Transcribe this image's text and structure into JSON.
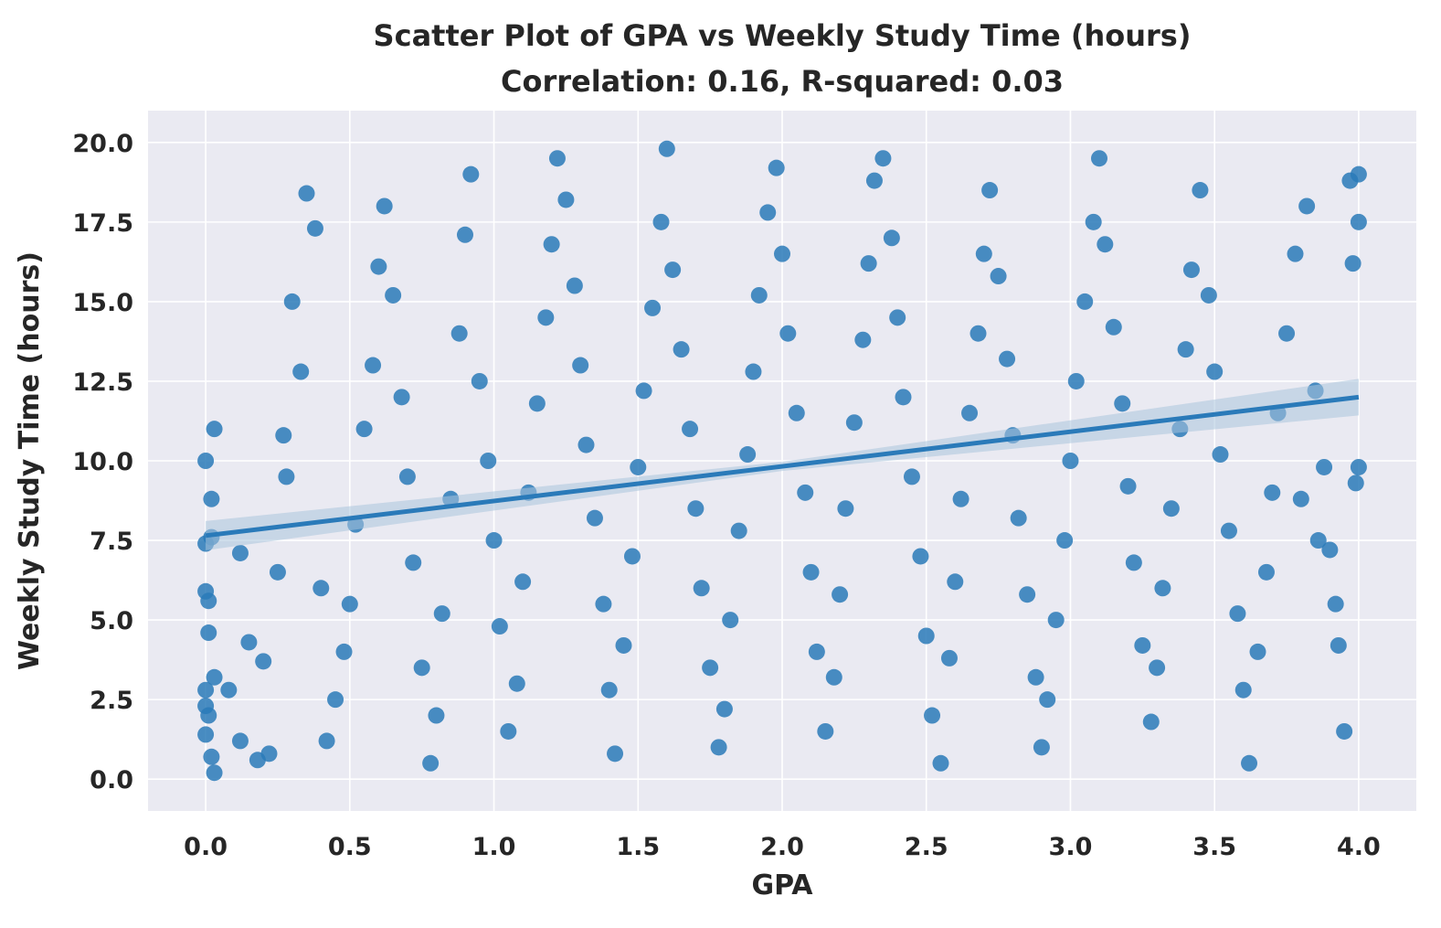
{
  "chart_data": {
    "type": "scatter",
    "title": "Scatter Plot of GPA vs Weekly Study Time (hours)",
    "subtitle": "Correlation: 0.16, R-squared: 0.03",
    "xlabel": "GPA",
    "ylabel": "Weekly Study Time (hours)",
    "xlim": [
      -0.2,
      4.2
    ],
    "ylim": [
      -1.0,
      21.0
    ],
    "x_ticks": [
      0.0,
      0.5,
      1.0,
      1.5,
      2.0,
      2.5,
      3.0,
      3.5,
      4.0
    ],
    "x_tick_labels": [
      "0.0",
      "0.5",
      "1.0",
      "1.5",
      "2.0",
      "2.5",
      "3.0",
      "3.5",
      "4.0"
    ],
    "y_ticks": [
      0.0,
      2.5,
      5.0,
      7.5,
      10.0,
      12.5,
      15.0,
      17.5,
      20.0
    ],
    "y_tick_labels": [
      "0.0",
      "2.5",
      "5.0",
      "7.5",
      "10.0",
      "12.5",
      "15.0",
      "17.5",
      "20.0"
    ],
    "grid": true,
    "point_color": "#2a7ab9",
    "regression_line": {
      "start": [
        0.0,
        7.65
      ],
      "end": [
        4.0,
        12.0
      ],
      "color": "#2a7ab9",
      "ci_color": "#a9c4dd"
    },
    "series": [
      {
        "points": [
          [
            0.0,
            10.0
          ],
          [
            0.03,
            11.0
          ],
          [
            0.02,
            8.8
          ],
          [
            0.0,
            5.9
          ],
          [
            0.01,
            4.6
          ],
          [
            0.0,
            2.8
          ],
          [
            0.01,
            2.0
          ],
          [
            0.0,
            1.4
          ],
          [
            0.02,
            0.7
          ],
          [
            0.03,
            0.2
          ],
          [
            0.01,
            5.6
          ],
          [
            0.0,
            7.4
          ],
          [
            0.02,
            7.6
          ],
          [
            0.03,
            3.2
          ],
          [
            0.0,
            2.3
          ],
          [
            0.08,
            2.8
          ],
          [
            0.12,
            7.1
          ],
          [
            0.15,
            4.3
          ],
          [
            0.12,
            1.2
          ],
          [
            0.18,
            0.6
          ],
          [
            0.22,
            0.8
          ],
          [
            0.2,
            3.7
          ],
          [
            0.25,
            6.5
          ],
          [
            0.27,
            10.8
          ],
          [
            0.3,
            15.0
          ],
          [
            0.28,
            9.5
          ],
          [
            0.33,
            12.8
          ],
          [
            0.35,
            18.4
          ],
          [
            0.38,
            17.3
          ],
          [
            0.4,
            6.0
          ],
          [
            0.42,
            1.2
          ],
          [
            0.45,
            2.5
          ],
          [
            0.48,
            4.0
          ],
          [
            0.5,
            5.5
          ],
          [
            0.52,
            8.0
          ],
          [
            0.55,
            11.0
          ],
          [
            0.58,
            13.0
          ],
          [
            0.6,
            16.1
          ],
          [
            0.62,
            18.0
          ],
          [
            0.65,
            15.2
          ],
          [
            0.68,
            12.0
          ],
          [
            0.7,
            9.5
          ],
          [
            0.72,
            6.8
          ],
          [
            0.75,
            3.5
          ],
          [
            0.78,
            0.5
          ],
          [
            0.8,
            2.0
          ],
          [
            0.82,
            5.2
          ],
          [
            0.85,
            8.8
          ],
          [
            0.88,
            14.0
          ],
          [
            0.9,
            17.1
          ],
          [
            0.92,
            19.0
          ],
          [
            0.95,
            12.5
          ],
          [
            0.98,
            10.0
          ],
          [
            1.0,
            7.5
          ],
          [
            1.02,
            4.8
          ],
          [
            1.05,
            1.5
          ],
          [
            1.08,
            3.0
          ],
          [
            1.1,
            6.2
          ],
          [
            1.12,
            9.0
          ],
          [
            1.15,
            11.8
          ],
          [
            1.18,
            14.5
          ],
          [
            1.2,
            16.8
          ],
          [
            1.22,
            19.5
          ],
          [
            1.25,
            18.2
          ],
          [
            1.28,
            15.5
          ],
          [
            1.3,
            13.0
          ],
          [
            1.32,
            10.5
          ],
          [
            1.35,
            8.2
          ],
          [
            1.38,
            5.5
          ],
          [
            1.4,
            2.8
          ],
          [
            1.42,
            0.8
          ],
          [
            1.45,
            4.2
          ],
          [
            1.48,
            7.0
          ],
          [
            1.5,
            9.8
          ],
          [
            1.52,
            12.2
          ],
          [
            1.55,
            14.8
          ],
          [
            1.58,
            17.5
          ],
          [
            1.6,
            19.8
          ],
          [
            1.62,
            16.0
          ],
          [
            1.65,
            13.5
          ],
          [
            1.68,
            11.0
          ],
          [
            1.7,
            8.5
          ],
          [
            1.72,
            6.0
          ],
          [
            1.75,
            3.5
          ],
          [
            1.78,
            1.0
          ],
          [
            1.8,
            2.2
          ],
          [
            1.82,
            5.0
          ],
          [
            1.85,
            7.8
          ],
          [
            1.88,
            10.2
          ],
          [
            1.9,
            12.8
          ],
          [
            1.92,
            15.2
          ],
          [
            1.95,
            17.8
          ],
          [
            1.98,
            19.2
          ],
          [
            2.0,
            16.5
          ],
          [
            2.02,
            14.0
          ],
          [
            2.05,
            11.5
          ],
          [
            2.08,
            9.0
          ],
          [
            2.1,
            6.5
          ],
          [
            2.12,
            4.0
          ],
          [
            2.15,
            1.5
          ],
          [
            2.18,
            3.2
          ],
          [
            2.2,
            5.8
          ],
          [
            2.22,
            8.5
          ],
          [
            2.25,
            11.2
          ],
          [
            2.28,
            13.8
          ],
          [
            2.3,
            16.2
          ],
          [
            2.32,
            18.8
          ],
          [
            2.35,
            19.5
          ],
          [
            2.38,
            17.0
          ],
          [
            2.4,
            14.5
          ],
          [
            2.42,
            12.0
          ],
          [
            2.45,
            9.5
          ],
          [
            2.48,
            7.0
          ],
          [
            2.5,
            4.5
          ],
          [
            2.52,
            2.0
          ],
          [
            2.55,
            0.5
          ],
          [
            2.58,
            3.8
          ],
          [
            2.6,
            6.2
          ],
          [
            2.62,
            8.8
          ],
          [
            2.65,
            11.5
          ],
          [
            2.68,
            14.0
          ],
          [
            2.7,
            16.5
          ],
          [
            2.72,
            18.5
          ],
          [
            2.75,
            15.8
          ],
          [
            2.78,
            13.2
          ],
          [
            2.8,
            10.8
          ],
          [
            2.82,
            8.2
          ],
          [
            2.85,
            5.8
          ],
          [
            2.88,
            3.2
          ],
          [
            2.9,
            1.0
          ],
          [
            2.92,
            2.5
          ],
          [
            2.95,
            5.0
          ],
          [
            2.98,
            7.5
          ],
          [
            3.0,
            10.0
          ],
          [
            3.02,
            12.5
          ],
          [
            3.05,
            15.0
          ],
          [
            3.08,
            17.5
          ],
          [
            3.1,
            19.5
          ],
          [
            3.12,
            16.8
          ],
          [
            3.15,
            14.2
          ],
          [
            3.18,
            11.8
          ],
          [
            3.2,
            9.2
          ],
          [
            3.22,
            6.8
          ],
          [
            3.25,
            4.2
          ],
          [
            3.28,
            1.8
          ],
          [
            3.3,
            3.5
          ],
          [
            3.32,
            6.0
          ],
          [
            3.35,
            8.5
          ],
          [
            3.38,
            11.0
          ],
          [
            3.4,
            13.5
          ],
          [
            3.42,
            16.0
          ],
          [
            3.45,
            18.5
          ],
          [
            3.48,
            15.2
          ],
          [
            3.5,
            12.8
          ],
          [
            3.52,
            10.2
          ],
          [
            3.55,
            7.8
          ],
          [
            3.58,
            5.2
          ],
          [
            3.6,
            2.8
          ],
          [
            3.62,
            0.5
          ],
          [
            3.65,
            4.0
          ],
          [
            3.68,
            6.5
          ],
          [
            3.7,
            9.0
          ],
          [
            3.72,
            11.5
          ],
          [
            3.75,
            14.0
          ],
          [
            3.78,
            16.5
          ],
          [
            3.82,
            18.0
          ],
          [
            3.85,
            12.2
          ],
          [
            3.88,
            9.8
          ],
          [
            3.9,
            7.2
          ],
          [
            3.92,
            5.5
          ],
          [
            3.95,
            1.5
          ],
          [
            3.98,
            16.2
          ],
          [
            4.0,
            19.0
          ],
          [
            4.0,
            9.8
          ],
          [
            4.0,
            17.5
          ],
          [
            3.97,
            18.8
          ],
          [
            3.99,
            9.3
          ],
          [
            3.93,
            4.2
          ],
          [
            3.86,
            7.5
          ],
          [
            3.8,
            8.8
          ]
        ]
      }
    ]
  }
}
